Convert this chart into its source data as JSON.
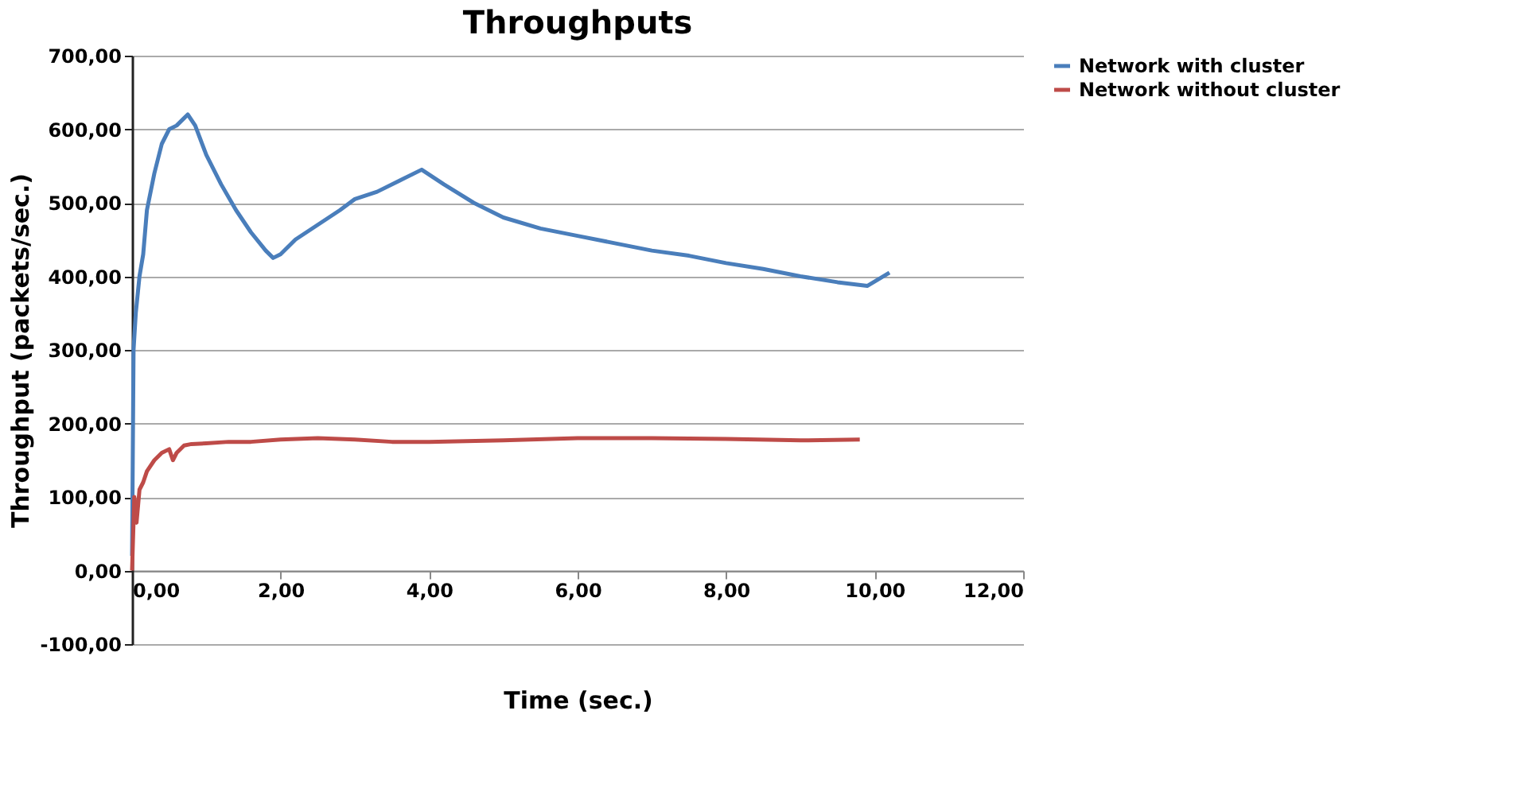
{
  "chart_data": {
    "type": "line",
    "title": "Throughputs",
    "xlabel": "Time (sec.)",
    "ylabel": "Throughput (packets/sec.)",
    "xlim": [
      0,
      12
    ],
    "ylim": [
      -100,
      700
    ],
    "xticks": [
      {
        "value": 0,
        "label": "0,00"
      },
      {
        "value": 2,
        "label": "2,00"
      },
      {
        "value": 4,
        "label": "4,00"
      },
      {
        "value": 6,
        "label": "6,00"
      },
      {
        "value": 8,
        "label": "8,00"
      },
      {
        "value": 10,
        "label": "10,00"
      },
      {
        "value": 12,
        "label": "12,00"
      }
    ],
    "yticks": [
      {
        "value": -100,
        "label": "-100,00"
      },
      {
        "value": 0,
        "label": "0,00"
      },
      {
        "value": 100,
        "label": "100,00"
      },
      {
        "value": 200,
        "label": "200,00"
      },
      {
        "value": 300,
        "label": "300,00"
      },
      {
        "value": 400,
        "label": "400,00"
      },
      {
        "value": 500,
        "label": "500,00"
      },
      {
        "value": 600,
        "label": "600,00"
      },
      {
        "value": 700,
        "label": "700,00"
      }
    ],
    "grid": "y",
    "legend": "right",
    "marker": "none",
    "line_style": "solid",
    "series": [
      {
        "name": "Network with cluster",
        "color": "#4a7ebb",
        "x": [
          0,
          0.02,
          0.05,
          0.1,
          0.15,
          0.2,
          0.3,
          0.4,
          0.5,
          0.6,
          0.7,
          0.75,
          0.85,
          1.0,
          1.2,
          1.4,
          1.6,
          1.8,
          1.9,
          2.0,
          2.2,
          2.5,
          2.8,
          3.0,
          3.3,
          3.6,
          3.9,
          4.2,
          4.6,
          5.0,
          5.5,
          6.0,
          6.5,
          7.0,
          7.5,
          8.0,
          8.5,
          9.0,
          9.5,
          9.9,
          10.2
        ],
        "values": [
          20,
          300,
          350,
          400,
          430,
          490,
          540,
          580,
          600,
          605,
          615,
          620,
          605,
          565,
          525,
          490,
          460,
          435,
          425,
          430,
          450,
          470,
          490,
          505,
          515,
          530,
          545,
          525,
          500,
          480,
          465,
          455,
          445,
          435,
          428,
          418,
          410,
          400,
          392,
          387,
          405
        ]
      },
      {
        "name": "Network without cluster",
        "color": "#be4b48",
        "x": [
          0,
          0.03,
          0.06,
          0.1,
          0.15,
          0.2,
          0.3,
          0.4,
          0.5,
          0.55,
          0.6,
          0.7,
          0.8,
          1.0,
          1.3,
          1.6,
          2.0,
          2.5,
          3.0,
          3.5,
          4.0,
          5.0,
          6.0,
          7.0,
          8.0,
          9.0,
          9.8
        ],
        "values": [
          0,
          100,
          65,
          110,
          120,
          135,
          150,
          160,
          165,
          150,
          160,
          170,
          172,
          173,
          175,
          175,
          178,
          180,
          178,
          175,
          175,
          177,
          180,
          180,
          179,
          177,
          178
        ]
      }
    ]
  }
}
